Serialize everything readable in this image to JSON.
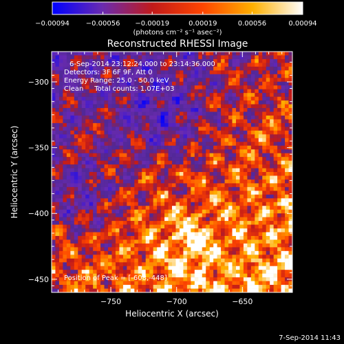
{
  "chart_data": {
    "type": "heatmap",
    "title": "Reconstructed RHESSI Image",
    "xlabel": "Heliocentric X (arcsec)",
    "ylabel": "Heliocentric Y (arcsec)",
    "xlim": [
      -795,
      -612
    ],
    "ylim": [
      -460,
      -277
    ],
    "x_ticks": [
      -750,
      -700,
      -650
    ],
    "x_tick_labels": [
      "−750",
      "−700",
      "−650"
    ],
    "y_ticks": [
      -300,
      -350,
      -400,
      -450
    ],
    "y_tick_labels": [
      "−300",
      "−350",
      "−400",
      "−450"
    ],
    "colorbar": {
      "ticks": [
        -0.00094,
        -0.00056,
        -0.00019,
        0.00019,
        0.00056,
        0.00094
      ],
      "tick_labels": [
        "−0.00094",
        "−0.00056",
        "−0.00019",
        "0.00019",
        "0.00056",
        "0.00094"
      ],
      "range": [
        -0.00094,
        0.00094
      ],
      "units_label": "(photons cm⁻² s⁻¹ asec⁻²)",
      "colors": [
        "#0000ff",
        "#6a2bb0",
        "#c11a1a",
        "#ff4500",
        "#ffb000",
        "#ffffff"
      ]
    },
    "annotations": [
      "6-Sep-2014 23:12:24.000 to 23:14:36.000",
      "Detectors: 3F 6F 9F, Att 0",
      "Energy Range: 25.0 - 50.0 keV",
      "Clean     Total counts: 1.07E+03"
    ],
    "peak_label": "Position of Peak = [-608,-448]",
    "peak": {
      "x": -608,
      "y": -448
    },
    "grid": false
  },
  "footer_timestamp": "7-Sep-2014 11:43"
}
